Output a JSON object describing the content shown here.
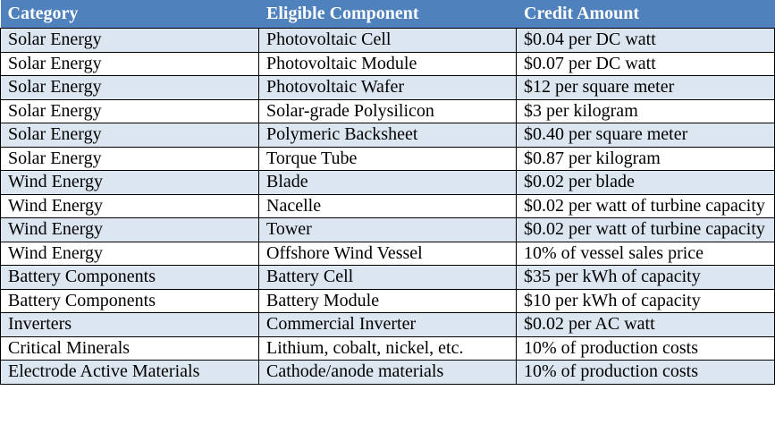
{
  "table": {
    "header": [
      "Category",
      "Eligible Component",
      "Credit Amount"
    ],
    "rows": [
      [
        "Solar Energy",
        "Photovoltaic Cell",
        "$0.04 per DC watt"
      ],
      [
        "Solar Energy",
        "Photovoltaic Module",
        "$0.07 per DC watt"
      ],
      [
        "Solar Energy",
        "Photovoltaic Wafer",
        "$12 per square meter"
      ],
      [
        "Solar Energy",
        "Solar-grade Polysilicon",
        "$3 per kilogram"
      ],
      [
        "Solar Energy",
        "Polymeric Backsheet",
        "$0.40 per square meter"
      ],
      [
        "Solar Energy",
        "Torque Tube",
        "$0.87 per kilogram"
      ],
      [
        "Wind Energy",
        "Blade",
        "$0.02 per blade"
      ],
      [
        "Wind Energy",
        "Nacelle",
        "$0.02 per watt of turbine capacity"
      ],
      [
        "Wind Energy",
        "Tower",
        "$0.02 per watt of turbine capacity"
      ],
      [
        "Wind Energy",
        "Offshore Wind Vessel",
        "10% of vessel sales price"
      ],
      [
        "Battery Components",
        "Battery Cell",
        "$35 per kWh of capacity"
      ],
      [
        "Battery Components",
        "Battery Module",
        "$10 per kWh of capacity"
      ],
      [
        "Inverters",
        "Commercial Inverter",
        "$0.02 per AC watt"
      ],
      [
        "Critical Minerals",
        "Lithium, cobalt, nickel, etc.",
        "10% of production costs"
      ],
      [
        "Electrode Active Materials",
        "Cathode/anode materials",
        "10% of production costs"
      ]
    ]
  }
}
